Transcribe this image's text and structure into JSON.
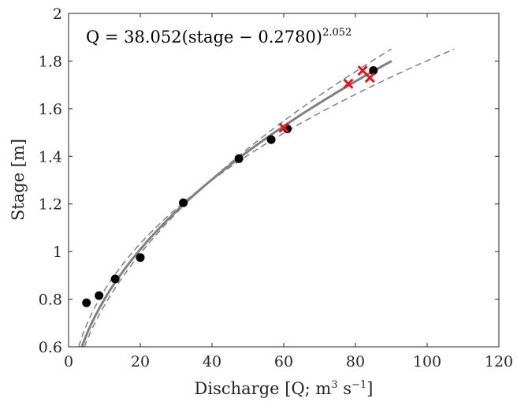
{
  "chart_data": {
    "type": "scatter",
    "title": "",
    "annotation": {
      "prefix": "Q = 38.052(stage − 0.2780)",
      "exponent": "2.052"
    },
    "xlabel": {
      "prefix": "Discharge [Q; m",
      "sup1": "3",
      "middle": " s",
      "sup2": "−1",
      "suffix": "]"
    },
    "ylabel": "Stage [m]",
    "xlim": [
      0,
      120
    ],
    "ylim": [
      0.6,
      2.0
    ],
    "xticks": [
      0,
      20,
      40,
      60,
      80,
      100,
      120
    ],
    "yticks": [
      0.6,
      0.8,
      1,
      1.2,
      1.4,
      1.6,
      1.8,
      2
    ],
    "xtick_labels": [
      "0",
      "20",
      "40",
      "60",
      "80",
      "100",
      "120"
    ],
    "ytick_labels": [
      "0.6",
      "0.8",
      "1",
      "1.2",
      "1.4",
      "1.6",
      "1.8",
      "2"
    ],
    "grid": false,
    "fit": {
      "type": "power",
      "a": 38.052,
      "h0": 0.278,
      "b": 2.052,
      "stage_range": [
        0.6,
        1.8
      ],
      "color": "#808080"
    },
    "bounds": [
      {
        "lower_stage_at_q90": 1.85,
        "color": "#808080",
        "dashed": true
      },
      {
        "upper_q_at_stage_1_85": 107.5,
        "color": "#808080",
        "dashed": true
      }
    ],
    "series": [
      {
        "marker": "circle",
        "color": "#000000",
        "points": [
          {
            "x": 5,
            "y": 0.785
          },
          {
            "x": 8.5,
            "y": 0.815
          },
          {
            "x": 13,
            "y": 0.885
          },
          {
            "x": 20,
            "y": 0.975
          },
          {
            "x": 32,
            "y": 1.205
          },
          {
            "x": 47.5,
            "y": 1.39
          },
          {
            "x": 56.5,
            "y": 1.47
          },
          {
            "x": 61,
            "y": 1.515
          },
          {
            "x": 85,
            "y": 1.76
          }
        ]
      },
      {
        "marker": "cross",
        "color": "#e8141e",
        "points": [
          {
            "x": 60,
            "y": 1.52
          },
          {
            "x": 78,
            "y": 1.705
          },
          {
            "x": 82,
            "y": 1.76
          },
          {
            "x": 84,
            "y": 1.73
          }
        ]
      }
    ]
  }
}
